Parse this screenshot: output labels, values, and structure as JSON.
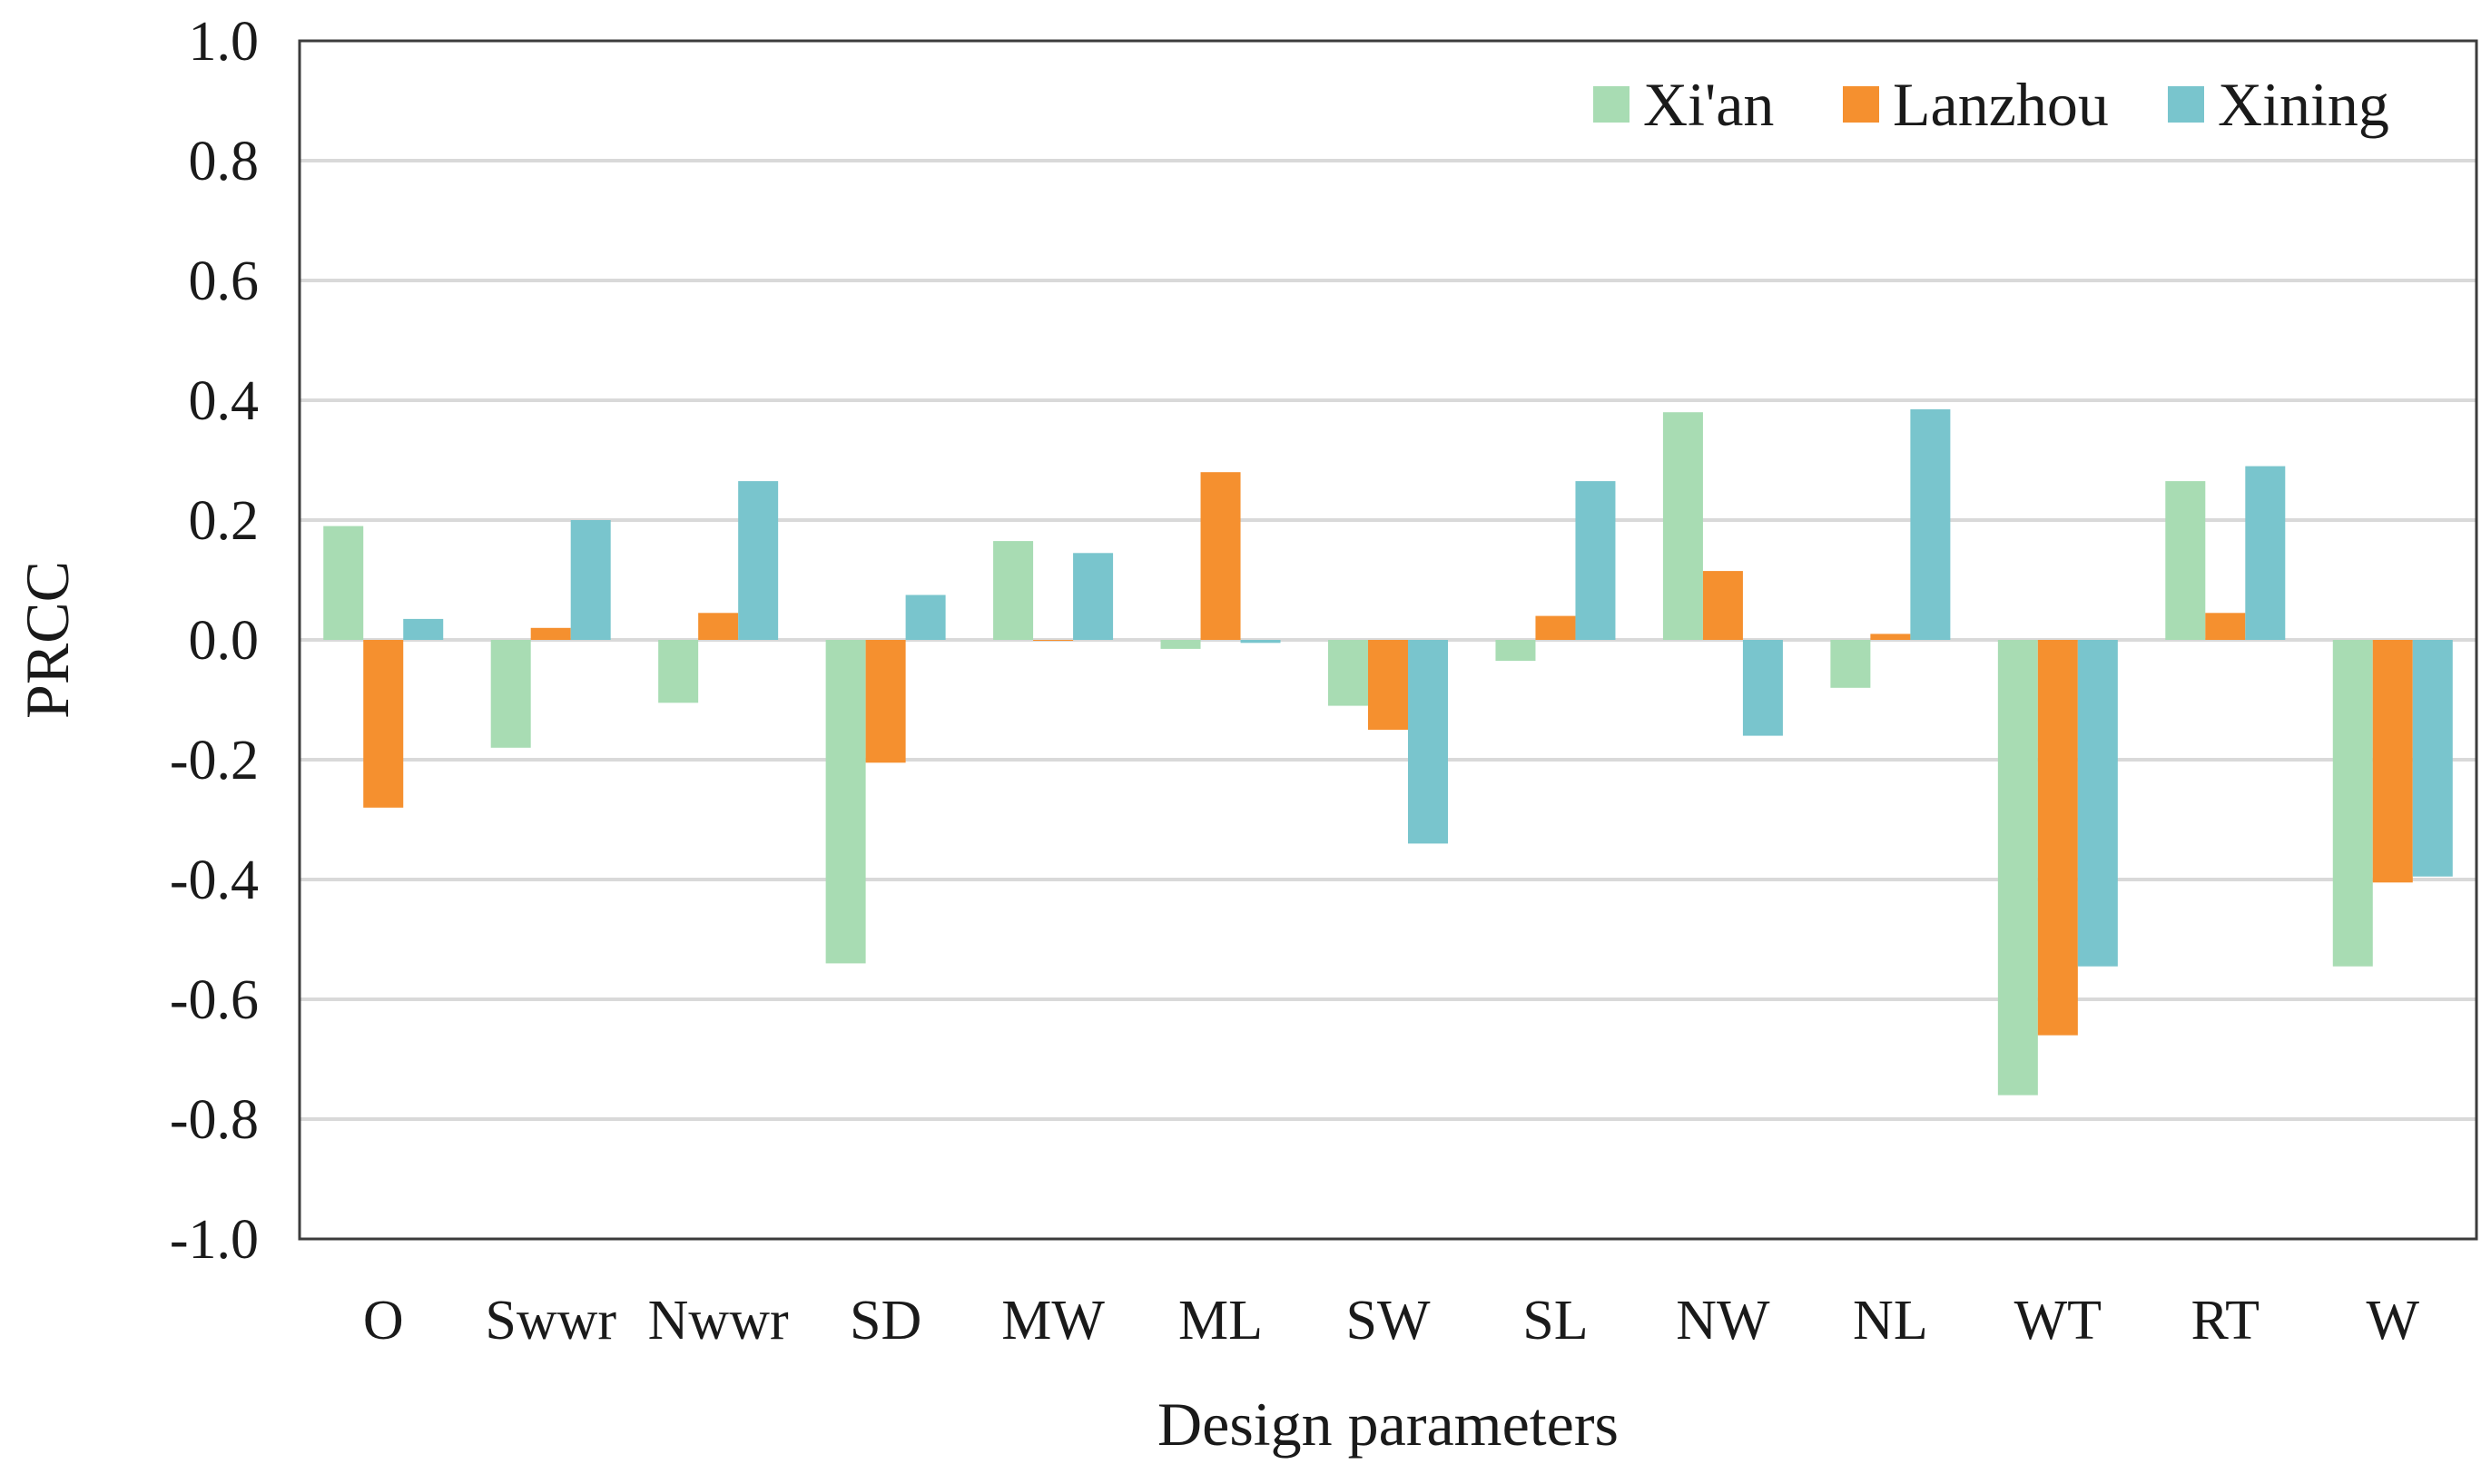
{
  "chart_data": {
    "type": "bar",
    "title": "",
    "xlabel": "Design parameters",
    "ylabel": "PRCC",
    "ylim": [
      -1.0,
      1.0
    ],
    "yticks": [
      "1.0",
      "0.8",
      "0.6",
      "0.4",
      "0.2",
      "0.0",
      "-0.2",
      "-0.4",
      "-0.6",
      "-0.8",
      "-1.0"
    ],
    "ytick_values": [
      1.0,
      0.8,
      0.6,
      0.4,
      0.2,
      0.0,
      -0.2,
      -0.4,
      -0.6,
      -0.8,
      -1.0
    ],
    "grid": true,
    "legend_position": "top-right",
    "categories": [
      "O",
      "Swwr",
      "Nwwr",
      "SD",
      "MW",
      "ML",
      "SW",
      "SL",
      "NW",
      "NL",
      "WT",
      "RT",
      "W"
    ],
    "series": [
      {
        "name": "Xi'an",
        "color": "#a8dcb3",
        "values": [
          0.19,
          -0.18,
          -0.105,
          -0.54,
          0.165,
          -0.015,
          -0.11,
          -0.035,
          0.38,
          -0.08,
          -0.76,
          0.265,
          -0.545
        ]
      },
      {
        "name": "Lanzhou",
        "color": "#f5902f",
        "values": [
          -0.28,
          0.02,
          0.045,
          -0.205,
          0.0,
          0.28,
          -0.15,
          0.04,
          0.115,
          0.01,
          -0.66,
          0.045,
          -0.405
        ]
      },
      {
        "name": "Xining",
        "color": "#79c5cd",
        "values": [
          0.035,
          0.2,
          0.265,
          0.075,
          0.145,
          -0.005,
          -0.34,
          0.265,
          -0.16,
          0.385,
          -0.545,
          0.29,
          -0.395
        ]
      }
    ]
  }
}
